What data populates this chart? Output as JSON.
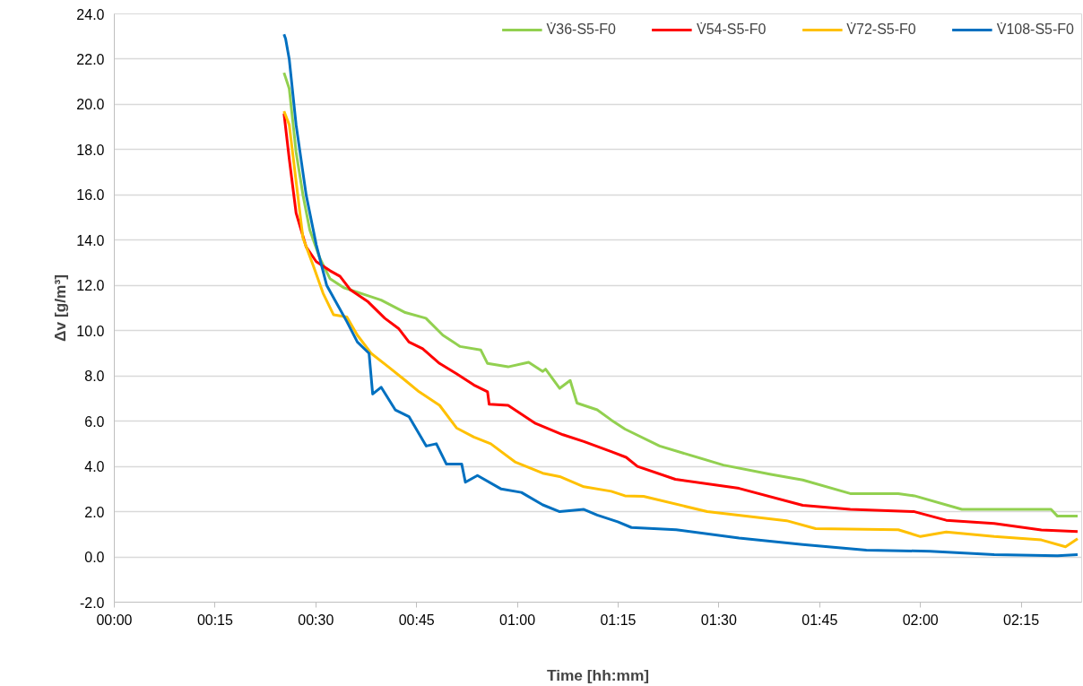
{
  "chart_data": {
    "type": "line",
    "xlabel": "Time [hh:mm]",
    "ylabel": "Δv [g/m³]",
    "xlim": [
      0,
      2.4
    ],
    "ylim": [
      -2,
      24
    ],
    "xticks": [
      {
        "value": 0,
        "label": "00:00"
      },
      {
        "value": 0.25,
        "label": "00:15"
      },
      {
        "value": 0.5,
        "label": "00:30"
      },
      {
        "value": 0.75,
        "label": "00:45"
      },
      {
        "value": 1,
        "label": "01:00"
      },
      {
        "value": 1.25,
        "label": "01:15"
      },
      {
        "value": 1.5,
        "label": "01:30"
      },
      {
        "value": 1.75,
        "label": "01:45"
      },
      {
        "value": 2,
        "label": "02:00"
      },
      {
        "value": 2.25,
        "label": "02:15"
      }
    ],
    "yticks": [
      {
        "value": -2,
        "label": "-2.0"
      },
      {
        "value": 0,
        "label": "0.0"
      },
      {
        "value": 2,
        "label": "2.0"
      },
      {
        "value": 4,
        "label": "4.0"
      },
      {
        "value": 6,
        "label": "6.0"
      },
      {
        "value": 8,
        "label": "8.0"
      },
      {
        "value": 10,
        "label": "10.0"
      },
      {
        "value": 12,
        "label": "12.0"
      },
      {
        "value": 14,
        "label": "14.0"
      },
      {
        "value": 16,
        "label": "16.0"
      },
      {
        "value": 18,
        "label": "18.0"
      },
      {
        "value": 20,
        "label": "20.0"
      },
      {
        "value": 22,
        "label": "22.0"
      },
      {
        "value": 24,
        "label": "24.0"
      }
    ],
    "grid": "y",
    "legend": "top right",
    "marker": "none",
    "line_style": "solid",
    "series": [
      {
        "name": "V̇36-S5-F0",
        "color": "#92d050",
        "x": [
          0.421,
          0.434,
          0.451,
          0.468,
          0.485,
          0.51,
          0.535,
          0.569,
          0.62,
          0.662,
          0.722,
          0.773,
          0.815,
          0.858,
          0.909,
          0.926,
          0.977,
          1.028,
          1.063,
          1.07,
          1.105,
          1.131,
          1.148,
          1.198,
          1.233,
          1.267,
          1.353,
          1.511,
          1.629,
          1.708,
          1.826,
          1.945,
          1.985,
          2.103,
          2.324,
          2.34,
          2.39
        ],
        "values": [
          21.4,
          20.7,
          17.9,
          16.0,
          14.45,
          13.2,
          12.3,
          11.9,
          11.6,
          11.35,
          10.8,
          10.55,
          9.8,
          9.3,
          9.15,
          8.55,
          8.4,
          8.6,
          8.2,
          8.3,
          7.45,
          7.8,
          6.8,
          6.5,
          6.05,
          5.65,
          4.9,
          4.06,
          3.65,
          3.4,
          2.8,
          2.8,
          2.7,
          2.1,
          2.1,
          1.8,
          1.8
        ]
      },
      {
        "name": "V̇54-S5-F0",
        "color": "#ff0000",
        "x": [
          0.421,
          0.434,
          0.451,
          0.476,
          0.501,
          0.535,
          0.56,
          0.586,
          0.628,
          0.671,
          0.705,
          0.731,
          0.765,
          0.807,
          0.849,
          0.892,
          0.926,
          0.93,
          0.977,
          1.045,
          1.113,
          1.165,
          1.233,
          1.27,
          1.298,
          1.392,
          1.55,
          1.708,
          1.826,
          1.985,
          2.064,
          2.183,
          2.3,
          2.39
        ],
        "values": [
          19.6,
          17.6,
          15.2,
          13.7,
          13.05,
          12.65,
          12.4,
          11.8,
          11.3,
          10.55,
          10.1,
          9.5,
          9.2,
          8.55,
          8.1,
          7.6,
          7.3,
          6.75,
          6.7,
          5.9,
          5.4,
          5.1,
          4.65,
          4.4,
          4.0,
          3.43,
          3.03,
          2.28,
          2.1,
          2.0,
          1.62,
          1.48,
          1.19,
          1.12
        ]
      },
      {
        "name": "V̇72-S5-F0",
        "color": "#ffc000",
        "x": [
          0.421,
          0.434,
          0.451,
          0.468,
          0.493,
          0.518,
          0.544,
          0.577,
          0.603,
          0.637,
          0.68,
          0.722,
          0.756,
          0.807,
          0.849,
          0.892,
          0.934,
          0.994,
          1.063,
          1.105,
          1.165,
          1.233,
          1.267,
          1.313,
          1.471,
          1.668,
          1.74,
          1.945,
          2.0,
          2.064,
          2.183,
          2.3,
          2.36,
          2.39
        ],
        "values": [
          19.7,
          19.1,
          16.6,
          14.1,
          12.9,
          11.65,
          10.7,
          10.6,
          9.8,
          9.0,
          8.4,
          7.8,
          7.3,
          6.7,
          5.7,
          5.3,
          5.0,
          4.2,
          3.7,
          3.55,
          3.1,
          2.9,
          2.7,
          2.68,
          2.0,
          1.6,
          1.25,
          1.2,
          0.9,
          1.1,
          0.9,
          0.75,
          0.45,
          0.8
        ]
      },
      {
        "name": "V̇108-S5-F0",
        "color": "#0070c0",
        "x": [
          0.421,
          0.425,
          0.434,
          0.451,
          0.476,
          0.501,
          0.527,
          0.552,
          0.577,
          0.603,
          0.632,
          0.641,
          0.662,
          0.697,
          0.731,
          0.774,
          0.799,
          0.824,
          0.862,
          0.871,
          0.901,
          0.96,
          1.01,
          1.063,
          1.105,
          1.165,
          1.198,
          1.249,
          1.283,
          1.394,
          1.55,
          1.708,
          1.866,
          2.024,
          2.183,
          2.34,
          2.39
        ],
        "values": [
          23.1,
          22.9,
          22.0,
          19.1,
          16.0,
          13.8,
          12.0,
          11.2,
          10.4,
          9.5,
          9.0,
          7.2,
          7.5,
          6.5,
          6.2,
          4.9,
          5.0,
          4.1,
          4.1,
          3.3,
          3.6,
          3.0,
          2.85,
          2.3,
          2.0,
          2.1,
          1.85,
          1.55,
          1.3,
          1.2,
          0.83,
          0.55,
          0.3,
          0.25,
          0.1,
          0.05,
          0.1
        ]
      }
    ]
  }
}
